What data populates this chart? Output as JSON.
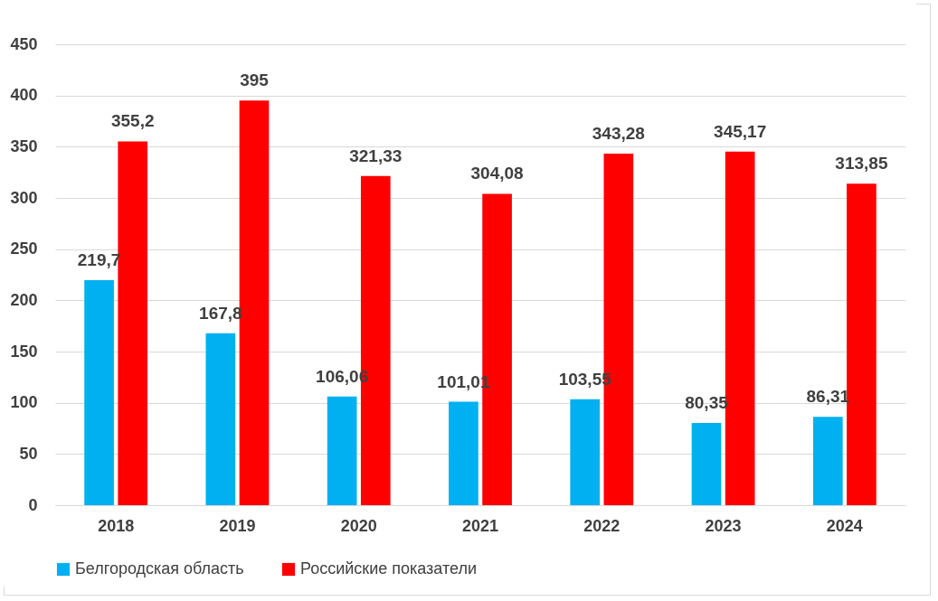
{
  "chart_data": {
    "type": "bar",
    "categories": [
      "2018",
      "2019",
      "2020",
      "2021",
      "2022",
      "2023",
      "2024"
    ],
    "series": [
      {
        "name": "Белгородская область",
        "color": "#00b0f0",
        "values": [
          219.7,
          167.8,
          106.06,
          101.01,
          103.55,
          80.35,
          86.31
        ],
        "value_labels": [
          "219,7",
          "167,8",
          "106,06",
          "101,01",
          "103,55",
          "80,35",
          "86,31"
        ]
      },
      {
        "name": "Российские показатели",
        "color": "#ff0000",
        "values": [
          355.2,
          395,
          321.33,
          304.08,
          343.28,
          345.17,
          313.85
        ],
        "value_labels": [
          "355,2",
          "395",
          "321,33",
          "304,08",
          "343,28",
          "345,17",
          "313,85"
        ]
      }
    ],
    "ylim": [
      0,
      450
    ],
    "yticks": [
      0,
      50,
      100,
      150,
      200,
      250,
      300,
      350,
      400,
      450
    ],
    "grid": "y",
    "legend": "bottom"
  }
}
